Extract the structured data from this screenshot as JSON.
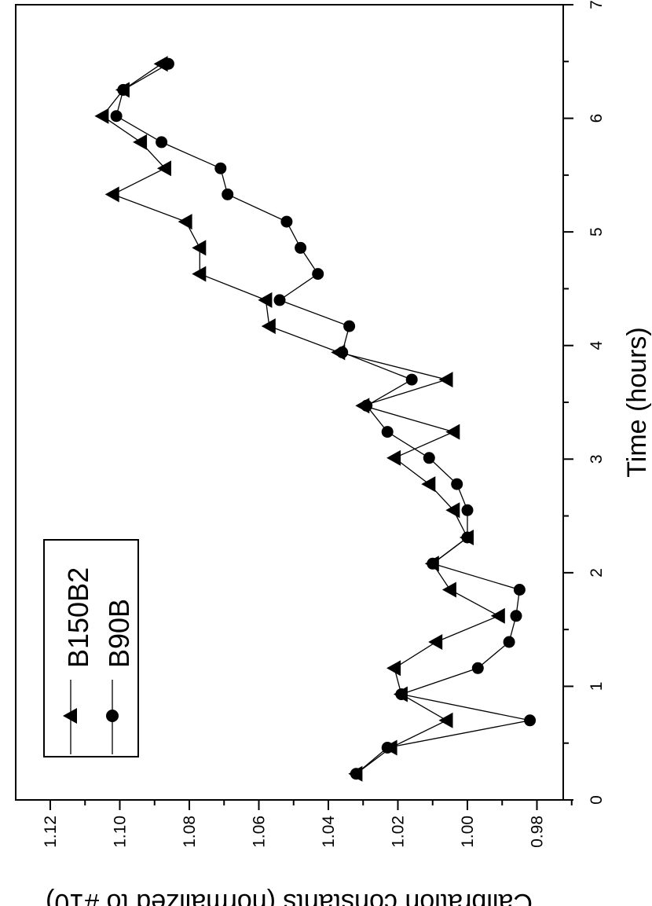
{
  "chart_data": {
    "type": "line",
    "xlabel": "Time (hours)",
    "ylabel": "Calibration constants (normalized to #10)",
    "xlim": [
      0,
      7
    ],
    "ylim": [
      0.97,
      1.125
    ],
    "x_ticks": [
      "0",
      "1",
      "2",
      "3",
      "4",
      "5",
      "6",
      "7"
    ],
    "y_ticks": [
      "0.98",
      "1.00",
      "1.02",
      "1.04",
      "1.06",
      "1.08",
      "1.10",
      "1.12"
    ],
    "orientation": "rotated 90 degrees clockwise",
    "legend": "bottom-left",
    "series": [
      {
        "name": "B150B2",
        "marker": "triangle",
        "x": [
          0.23,
          0.46,
          0.7,
          0.93,
          1.16,
          1.39,
          1.62,
          1.85,
          2.08,
          2.31,
          2.55,
          2.78,
          3.01,
          3.24,
          3.47,
          3.7,
          3.94,
          4.17,
          4.4,
          4.63,
          4.86,
          5.09,
          5.33,
          5.56,
          5.79,
          6.02,
          6.25,
          6.48
        ],
        "values": [
          1.032,
          1.022,
          1.006,
          1.019,
          1.021,
          1.009,
          0.991,
          1.005,
          1.01,
          1.0,
          1.004,
          1.011,
          1.021,
          1.004,
          1.03,
          1.006,
          1.037,
          1.057,
          1.058,
          1.077,
          1.077,
          1.081,
          1.102,
          1.087,
          1.094,
          1.105,
          1.099,
          1.088
        ]
      },
      {
        "name": "B90B",
        "marker": "circle",
        "x": [
          0.23,
          0.46,
          0.7,
          0.93,
          1.16,
          1.39,
          1.62,
          1.85,
          2.08,
          2.31,
          2.55,
          2.78,
          3.01,
          3.24,
          3.47,
          3.7,
          3.94,
          4.17,
          4.4,
          4.63,
          4.86,
          5.09,
          5.33,
          5.56,
          5.79,
          6.02,
          6.25,
          6.48
        ],
        "values": [
          1.032,
          1.023,
          0.982,
          1.019,
          0.997,
          0.988,
          0.986,
          0.985,
          1.01,
          1.0,
          1.0,
          1.003,
          1.011,
          1.023,
          1.029,
          1.016,
          1.036,
          1.034,
          1.054,
          1.043,
          1.048,
          1.052,
          1.069,
          1.071,
          1.088,
          1.101,
          1.099,
          1.086
        ]
      }
    ]
  }
}
